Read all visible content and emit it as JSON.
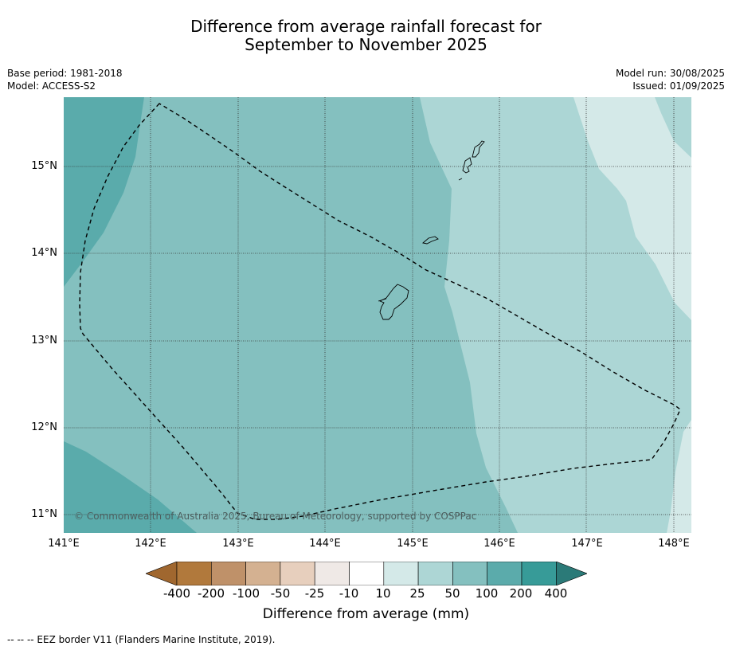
{
  "title_line1": "Difference from average rainfall forecast for",
  "title_line2": "September to November 2025",
  "base_period": "Base period: 1981-2018",
  "model": "Model: ACCESS-S2",
  "model_run": "Model run: 30/08/2025",
  "issued": "Issued: 01/09/2025",
  "copyright": "© Commonwealth of Australia 2025, Bureau of Meteorology, supported by COSPPac",
  "lat_labels": [
    "15°N",
    "14°N",
    "13°N",
    "12°N",
    "11°N"
  ],
  "lon_labels": [
    "141°E",
    "142°E",
    "143°E",
    "144°E",
    "145°E",
    "146°E",
    "147°E",
    "148°E"
  ],
  "colorbar": {
    "title": "Difference from average (mm)",
    "tick_labels": [
      "-400",
      "-200",
      "-100",
      "-50",
      "-25",
      "-10",
      "10",
      "25",
      "50",
      "100",
      "200",
      "400"
    ],
    "colors": [
      "#a0672f",
      "#b1793c",
      "#bf9169",
      "#d4b191",
      "#e7cfbd",
      "#efe9e6",
      "#ffffff",
      "#d4e9e8",
      "#add6d5",
      "#84c0bf",
      "#5babab",
      "#379b98",
      "#2b7a78"
    ]
  },
  "map_colors": {
    "gt_200": "#5aabab",
    "100_200": "#84c0bf",
    "50_100": "#acd6d5",
    "25_50": "#d4e9e8"
  },
  "footer": "--  --  -- EEZ border V11 (Flanders Marine Institute, 2019)."
}
